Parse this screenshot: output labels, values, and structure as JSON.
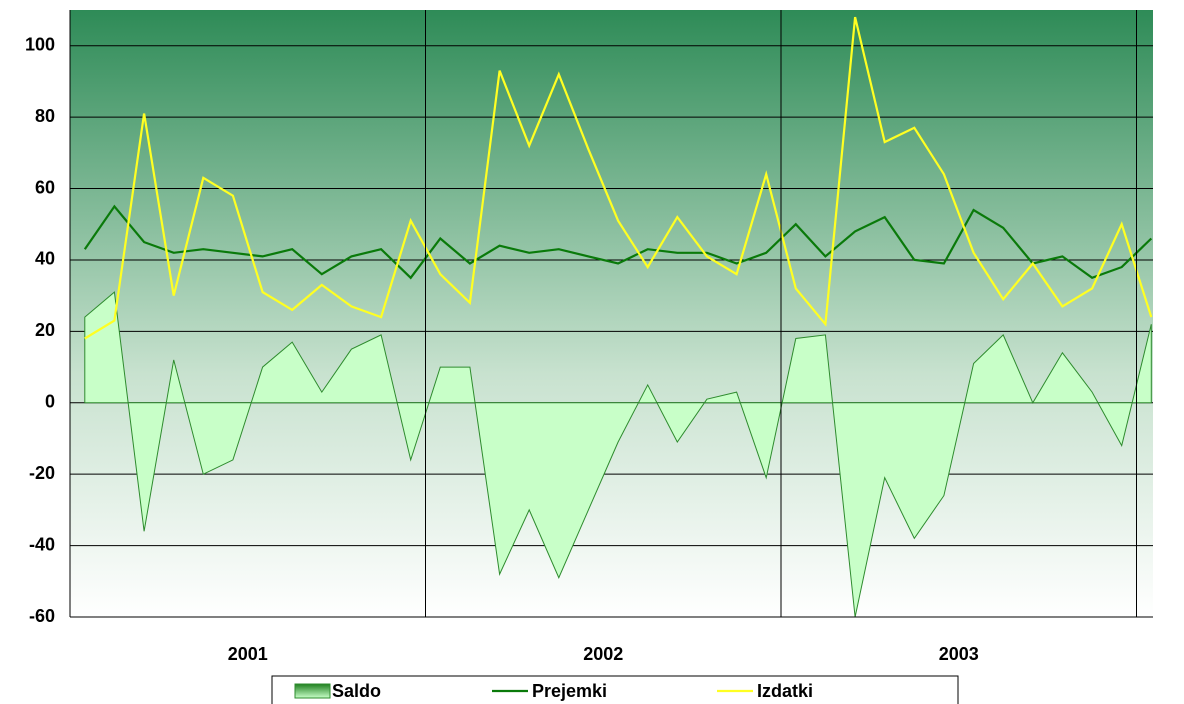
{
  "chart_data": {
    "type": "line",
    "categories": [
      null,
      null,
      null,
      null,
      null,
      null,
      null,
      null,
      null,
      null,
      null,
      null,
      null,
      null,
      null,
      null,
      null,
      null,
      null,
      null,
      null,
      null,
      null,
      null,
      null,
      null,
      null,
      null,
      null,
      null,
      null,
      null,
      null,
      null,
      null,
      null,
      null
    ],
    "groups": [
      "2001",
      "2002",
      "2003"
    ],
    "series": [
      {
        "name": "Saldo",
        "type": "area",
        "color": "#228b22",
        "values": [
          24,
          31,
          -36,
          12,
          -20,
          -16,
          10,
          17,
          3,
          15,
          19,
          -16,
          10,
          10,
          -48,
          -30,
          -49,
          -30,
          -11,
          5,
          -11,
          1,
          3,
          -21,
          18,
          19,
          -60,
          -21,
          -38,
          -26,
          11,
          19,
          0,
          14,
          3,
          -12,
          22
        ]
      },
      {
        "name": "Prejemki",
        "type": "line",
        "color": "#0a7a0a",
        "values": [
          43,
          55,
          45,
          42,
          43,
          42,
          41,
          43,
          36,
          41,
          43,
          35,
          46,
          39,
          44,
          42,
          43,
          41,
          39,
          43,
          42,
          42,
          39,
          42,
          50,
          41,
          48,
          52,
          40,
          39,
          54,
          49,
          39,
          41,
          35,
          38,
          46
        ]
      },
      {
        "name": "Izdatki",
        "type": "line",
        "color": "#ffff22",
        "values": [
          18,
          23,
          81,
          30,
          63,
          58,
          31,
          26,
          33,
          27,
          24,
          51,
          36,
          28,
          93,
          72,
          92,
          71,
          51,
          38,
          52,
          41,
          36,
          64,
          32,
          22,
          108,
          73,
          77,
          64,
          42,
          29,
          39,
          27,
          32,
          50,
          24
        ]
      }
    ],
    "ylim": [
      -60,
      110
    ],
    "yticks": [
      -60,
      -40,
      -20,
      0,
      20,
      40,
      60,
      80,
      100
    ],
    "grid": true,
    "legend": "bottom"
  }
}
